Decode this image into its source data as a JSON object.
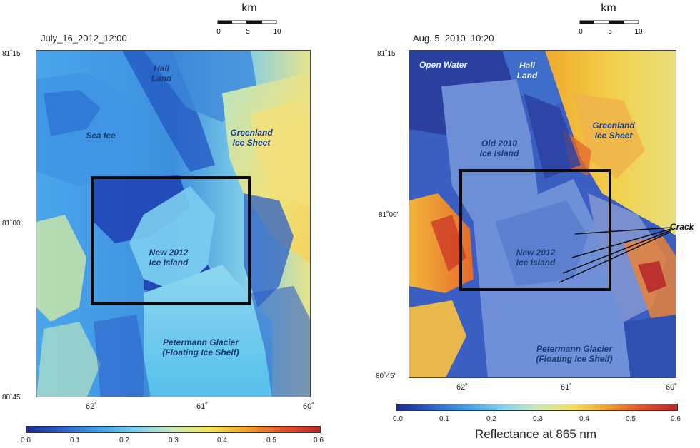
{
  "left_panel": {
    "timestamp": "July_16_2012_12:00",
    "lat_labels": [
      "81˚15'",
      "81˚00'",
      "80˚45'"
    ],
    "lon_labels": [
      "62˚",
      "61˚",
      "60˚"
    ],
    "scalebar": {
      "title": "km",
      "ticks": [
        "0",
        "5",
        "10"
      ]
    },
    "labels": {
      "hall_land": "Hall\nLand",
      "sea_ice": "Sea Ice",
      "greenland": "Greenland\nIce Sheet",
      "new_island": "New 2012\nIce Island",
      "petermann": "Petermann Glacier\n(Floating Ice Shelf)"
    },
    "colorbar_ticks": [
      "0.0",
      "0.1",
      "0.2",
      "0.3",
      "0.4",
      "0.5",
      "0.6"
    ]
  },
  "right_panel": {
    "timestamp": "Aug. 5  2010  10:20",
    "lat_labels": [
      "81˚15'",
      "81˚00'",
      "80˚45'"
    ],
    "lon_labels": [
      "62˚",
      "61˚",
      "60˚"
    ],
    "scalebar": {
      "title": "km",
      "ticks": [
        "0",
        "5",
        "10"
      ]
    },
    "labels": {
      "open_water": "Open Water",
      "hall_land": "Hall\nLand",
      "greenland": "Greenland\nIce Sheet",
      "old_island": "Old 2010\nIce Island",
      "new_island": "New 2012\nIce Island",
      "petermann": "Petermann Glacier\n(Floating Ice Shelf)",
      "crack": "Crack"
    },
    "colorbar_ticks": [
      "0.0",
      "0.1",
      "0.2",
      "0.3",
      "0.4",
      "0.5",
      "0.6"
    ],
    "colorbar_title": "Reflectance at 865 nm"
  },
  "colormap": [
    "#1b2a8f",
    "#2f62c8",
    "#3fa2e6",
    "#7fd0ee",
    "#c9e7b6",
    "#f2e35a",
    "#f2a12c",
    "#e2502a",
    "#b8282a"
  ]
}
